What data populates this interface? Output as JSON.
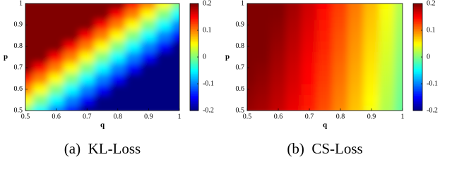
{
  "chart_data": [
    {
      "type": "heatmap",
      "caption": "(a)  KL-Loss",
      "xlabel": "q",
      "ylabel": "p",
      "x": [
        0.5,
        0.55,
        0.6,
        0.65,
        0.7,
        0.75,
        0.8,
        0.85,
        0.9,
        0.95,
        1
      ],
      "y": [
        0.5,
        0.55,
        0.6,
        0.65,
        0.7,
        0.75,
        0.8,
        0.85,
        0.9,
        0.95,
        1
      ],
      "z": [
        [
          0,
          -0.05,
          -0.1,
          -0.15,
          -0.2,
          -0.25,
          -0.3,
          -0.35,
          -0.4,
          -0.45,
          -0.5
        ],
        [
          0.05,
          0,
          -0.05,
          -0.1,
          -0.15,
          -0.2,
          -0.25,
          -0.3,
          -0.35,
          -0.4,
          -0.45
        ],
        [
          0.1,
          0.05,
          0,
          -0.05,
          -0.1,
          -0.15,
          -0.2,
          -0.25,
          -0.3,
          -0.35,
          -0.4
        ],
        [
          0.15,
          0.1,
          0.05,
          0,
          -0.05,
          -0.1,
          -0.15,
          -0.2,
          -0.25,
          -0.3,
          -0.35
        ],
        [
          0.2,
          0.15,
          0.1,
          0.05,
          0,
          -0.05,
          -0.1,
          -0.15,
          -0.2,
          -0.25,
          -0.3
        ],
        [
          0.25,
          0.2,
          0.15,
          0.1,
          0.05,
          0,
          -0.05,
          -0.1,
          -0.15,
          -0.2,
          -0.25
        ],
        [
          0.3,
          0.25,
          0.2,
          0.15,
          0.1,
          0.05,
          0,
          -0.05,
          -0.1,
          -0.15,
          -0.2
        ],
        [
          0.35,
          0.3,
          0.25,
          0.2,
          0.15,
          0.1,
          0.05,
          0,
          -0.05,
          -0.1,
          -0.15
        ],
        [
          0.4,
          0.35,
          0.3,
          0.25,
          0.2,
          0.15,
          0.1,
          0.05,
          0,
          -0.05,
          -0.1
        ],
        [
          0.45,
          0.4,
          0.35,
          0.3,
          0.25,
          0.2,
          0.15,
          0.1,
          0.05,
          0,
          -0.05
        ],
        [
          0.5,
          0.45,
          0.4,
          0.35,
          0.3,
          0.25,
          0.2,
          0.15,
          0.1,
          0.05,
          0
        ]
      ],
      "xlim": [
        0.5,
        1
      ],
      "ylim": [
        0.5,
        1
      ],
      "zlim": [
        -0.2,
        0.2
      ],
      "xticks": [
        0.5,
        0.6,
        0.7,
        0.8,
        0.9,
        1
      ],
      "yticks": [
        0.5,
        0.6,
        0.7,
        0.8,
        0.9,
        1
      ],
      "zticks": [
        0.2,
        0.1,
        0,
        -0.1,
        -0.2
      ],
      "colormap": "jet"
    },
    {
      "type": "heatmap",
      "caption": "(b)  CS-Loss",
      "xlabel": "q",
      "ylabel": "p",
      "x": [
        0.5,
        0.55,
        0.6,
        0.65,
        0.7,
        0.75,
        0.8,
        0.85,
        0.9,
        0.95,
        1
      ],
      "y": [
        0.5,
        0.55,
        0.6,
        0.65,
        0.7,
        0.75,
        0.8,
        0.85,
        0.9,
        0.95,
        1
      ],
      "z": [
        [
          0.19,
          0.184,
          0.172,
          0.157,
          0.139,
          0.119,
          0.097,
          0.073,
          0.047,
          0.019,
          -0.01
        ],
        [
          0.193,
          0.187,
          0.175,
          0.16,
          0.142,
          0.122,
          0.1,
          0.076,
          0.05,
          0.022,
          -0.007
        ],
        [
          0.196,
          0.19,
          0.178,
          0.163,
          0.145,
          0.125,
          0.103,
          0.079,
          0.053,
          0.025,
          -0.004
        ],
        [
          0.199,
          0.193,
          0.181,
          0.166,
          0.148,
          0.128,
          0.106,
          0.082,
          0.056,
          0.028,
          -0.001
        ],
        [
          0.202,
          0.196,
          0.184,
          0.169,
          0.151,
          0.131,
          0.109,
          0.085,
          0.059,
          0.031,
          0.002
        ],
        [
          0.205,
          0.199,
          0.187,
          0.172,
          0.154,
          0.134,
          0.112,
          0.088,
          0.062,
          0.034,
          0.005
        ],
        [
          0.208,
          0.202,
          0.19,
          0.175,
          0.157,
          0.137,
          0.115,
          0.091,
          0.065,
          0.037,
          0.008
        ],
        [
          0.211,
          0.205,
          0.193,
          0.178,
          0.16,
          0.14,
          0.118,
          0.094,
          0.068,
          0.04,
          0.011
        ],
        [
          0.214,
          0.208,
          0.196,
          0.181,
          0.163,
          0.143,
          0.121,
          0.097,
          0.071,
          0.043,
          0.014
        ],
        [
          0.217,
          0.211,
          0.199,
          0.184,
          0.166,
          0.146,
          0.124,
          0.1,
          0.074,
          0.046,
          0.017
        ],
        [
          0.22,
          0.214,
          0.202,
          0.187,
          0.169,
          0.149,
          0.127,
          0.103,
          0.077,
          0.049,
          0.02
        ]
      ],
      "xlim": [
        0.5,
        1
      ],
      "ylim": [
        0.5,
        1
      ],
      "zlim": [
        -0.2,
        0.2
      ],
      "xticks": [
        0.5,
        0.6,
        0.7,
        0.8,
        0.9,
        1
      ],
      "yticks": [
        0.5,
        0.6,
        0.7,
        0.8,
        0.9,
        1
      ],
      "zticks": [
        0.2,
        0.1,
        0,
        -0.1,
        -0.2
      ],
      "colormap": "jet"
    }
  ]
}
